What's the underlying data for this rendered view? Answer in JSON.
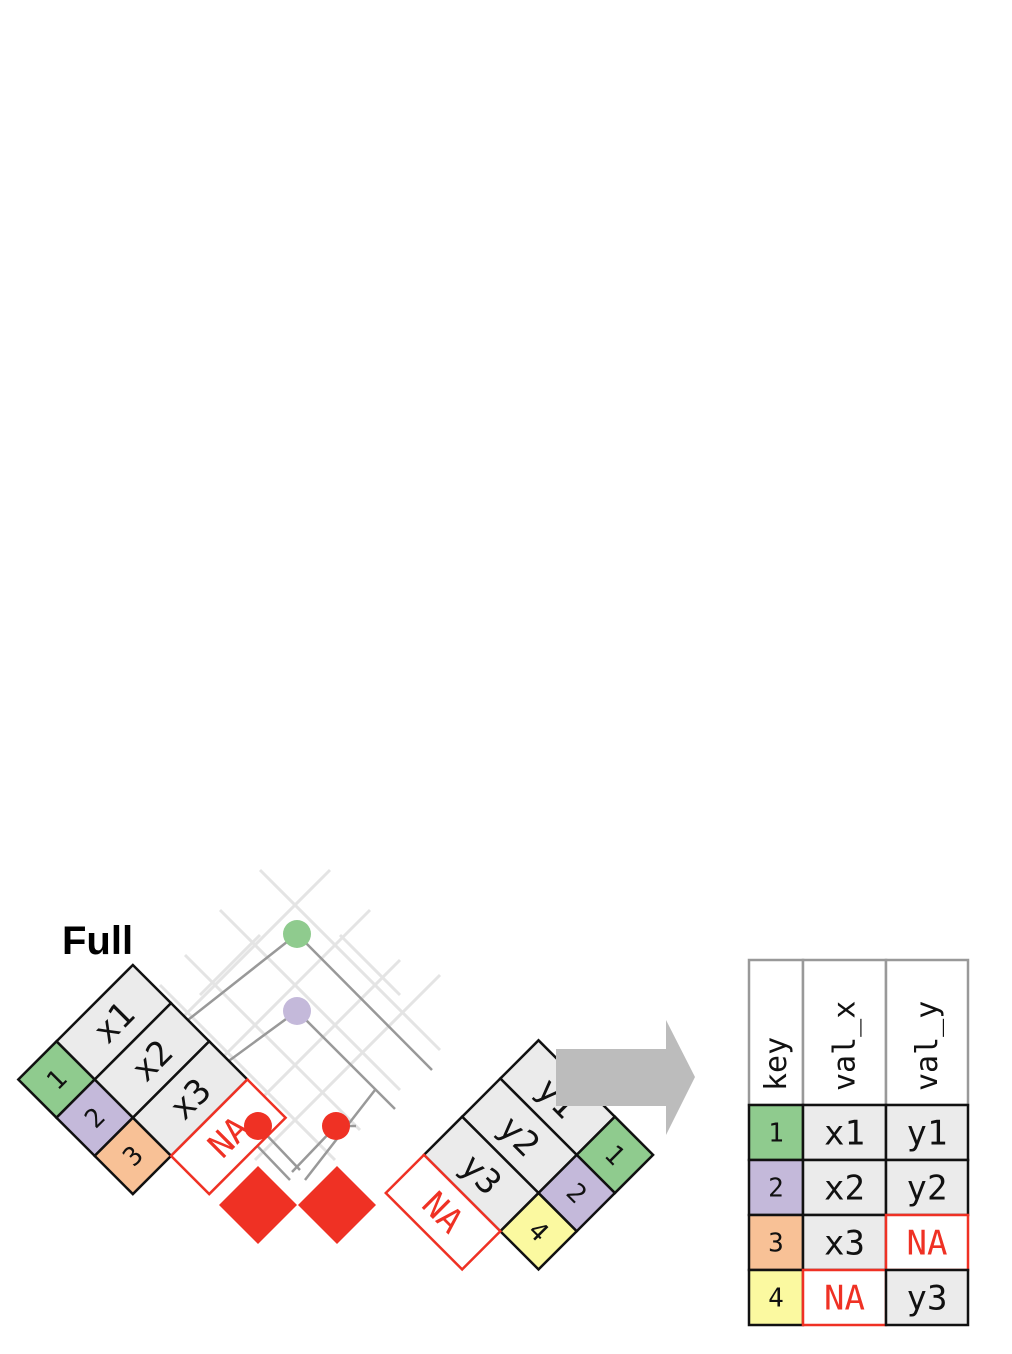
{
  "title": "Full",
  "colors": {
    "key_1": "#8fcb8e",
    "key_2": "#c4b9da",
    "key_3": "#f8c196",
    "key_4": "#fbf9a0",
    "value_cell": "#ebebeb",
    "missing": "#ef3124",
    "arrow": "#bcbcbc",
    "line": "#999999",
    "grid": "#e4e4e4"
  },
  "left_table": {
    "rows": [
      {
        "key": "1",
        "value": "x1",
        "color": "#8fcb8e"
      },
      {
        "key": "2",
        "value": "x2",
        "color": "#c4b9da"
      },
      {
        "key": "3",
        "value": "x3",
        "color": "#f8c196"
      },
      {
        "key": "",
        "value": "NA",
        "color": "#ef3124"
      }
    ]
  },
  "right_table": {
    "rows": [
      {
        "key": "1",
        "value": "y1",
        "color": "#8fcb8e"
      },
      {
        "key": "2",
        "value": "y2",
        "color": "#c4b9da"
      },
      {
        "key": "4",
        "value": "y3",
        "color": "#fbf9a0"
      },
      {
        "key": "",
        "value": "NA",
        "color": "#ef3124"
      }
    ]
  },
  "match_dots": [
    {
      "color": "#8fcb8e"
    },
    {
      "color": "#c4b9da"
    },
    {
      "color": "#ef3124"
    },
    {
      "color": "#ef3124"
    }
  ],
  "result_table": {
    "headers": [
      "key",
      "val_x",
      "val_y"
    ],
    "rows": [
      {
        "key": "1",
        "val_x": "x1",
        "val_y": "y1",
        "color": "#8fcb8e"
      },
      {
        "key": "2",
        "val_x": "x2",
        "val_y": "y2",
        "color": "#c4b9da"
      },
      {
        "key": "3",
        "val_x": "x3",
        "val_y": "NA",
        "color": "#f8c196"
      },
      {
        "key": "4",
        "val_x": "NA",
        "val_y": "y3",
        "color": "#fbf9a0"
      }
    ]
  }
}
